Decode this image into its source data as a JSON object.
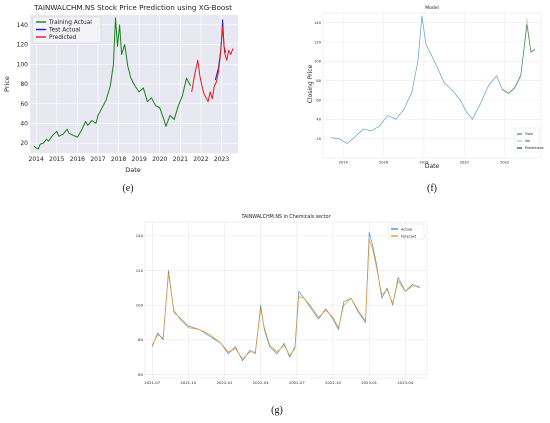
{
  "captions": {
    "e": "(e)",
    "f": "(f)",
    "g": "(g)"
  },
  "chart_data": [
    {
      "type": "line",
      "title": "TAINWALCHM.NS Stock Price Prediction using XG-Boost",
      "xlabel": "Date",
      "ylabel": "Price",
      "x_ticks": [
        "2014",
        "2015",
        "2016",
        "2017",
        "2018",
        "2019",
        "2020",
        "2021",
        "2022",
        "2023"
      ],
      "y_ticks": [
        20,
        40,
        60,
        80,
        100,
        120,
        140
      ],
      "xlim": [
        2013.7,
        2023.8
      ],
      "ylim": [
        10,
        150
      ],
      "legend": "top-left",
      "grid": true,
      "series": [
        {
          "name": "Training Actual",
          "color": "#1a7f1a",
          "x": [
            2013.9,
            2014.0,
            2014.1,
            2014.2,
            2014.35,
            2014.5,
            2014.6,
            2014.8,
            2015.0,
            2015.1,
            2015.3,
            2015.5,
            2015.6,
            2015.8,
            2016.0,
            2016.2,
            2016.4,
            2016.5,
            2016.7,
            2016.9,
            2017.0,
            2017.2,
            2017.4,
            2017.6,
            2017.75,
            2017.85,
            2017.95,
            2018.05,
            2018.15,
            2018.3,
            2018.45,
            2018.6,
            2018.8,
            2019.0,
            2019.2,
            2019.4,
            2019.6,
            2019.8,
            2020.0,
            2020.2,
            2020.3,
            2020.5,
            2020.7,
            2020.9,
            2021.1,
            2021.3,
            2021.5
          ],
          "y": [
            17,
            15,
            14,
            19,
            20,
            24,
            22,
            28,
            32,
            27,
            29,
            34,
            30,
            28,
            26,
            33,
            42,
            38,
            43,
            40,
            48,
            56,
            64,
            78,
            100,
            147,
            118,
            140,
            110,
            120,
            98,
            86,
            78,
            72,
            76,
            62,
            66,
            58,
            56,
            44,
            37,
            48,
            44,
            58,
            68,
            86,
            78
          ]
        },
        {
          "name": "Test Actual",
          "color": "#1a1ad6",
          "x": [
            2022.7,
            2022.85,
            2022.95,
            2023.0,
            2023.05,
            2023.12,
            2023.2
          ],
          "y": [
            84,
            96,
            112,
            124,
            145,
            118,
            112
          ]
        },
        {
          "name": "Predicted",
          "color": "#e6191e",
          "x": [
            2021.55,
            2021.65,
            2021.75,
            2021.85,
            2021.95,
            2022.05,
            2022.15,
            2022.25,
            2022.35,
            2022.45,
            2022.55,
            2022.65,
            2022.75,
            2022.85,
            2022.95,
            2023.0,
            2023.05,
            2023.15,
            2023.25,
            2023.35,
            2023.45,
            2023.55
          ],
          "y": [
            72,
            84,
            95,
            104,
            88,
            78,
            70,
            66,
            62,
            72,
            65,
            78,
            82,
            92,
            110,
            124,
            138,
            112,
            104,
            114,
            110,
            116
          ]
        }
      ]
    },
    {
      "type": "line",
      "title": "Model",
      "xlabel": "Date",
      "ylabel": "Closing Price",
      "x_ticks": [
        "2014",
        "2016",
        "2018",
        "2020",
        "2022"
      ],
      "y_ticks": [
        20,
        40,
        60,
        80,
        100,
        120,
        140
      ],
      "xlim": [
        2013.0,
        2023.8
      ],
      "ylim": [
        0,
        150
      ],
      "legend": "bottom-right",
      "grid": true,
      "series": [
        {
          "name": "Train",
          "color": "#4a90c8",
          "x": [
            2013.4,
            2013.8,
            2014.2,
            2014.6,
            2015.0,
            2015.4,
            2015.8,
            2016.2,
            2016.6,
            2017.0,
            2017.4,
            2017.7,
            2017.9,
            2018.1,
            2018.4,
            2018.7,
            2019.0,
            2019.4,
            2019.8,
            2020.1,
            2020.4,
            2020.8,
            2021.2,
            2021.6,
            2021.9
          ],
          "y": [
            21,
            20,
            15,
            22,
            30,
            28,
            33,
            44,
            40,
            50,
            68,
            100,
            147,
            118,
            105,
            92,
            78,
            70,
            60,
            48,
            40,
            56,
            75,
            85,
            70
          ]
        },
        {
          "name": "Val",
          "color": "#c8c8c8",
          "x": [
            2021.9,
            2022.2,
            2022.5,
            2022.8,
            2023.0,
            2023.1,
            2023.3,
            2023.5
          ],
          "y": [
            70,
            66,
            72,
            84,
            124,
            145,
            108,
            114
          ]
        },
        {
          "name": "Predictions",
          "color": "#2e7d32",
          "x": [
            2021.9,
            2022.2,
            2022.5,
            2022.8,
            2023.0,
            2023.1,
            2023.3,
            2023.5
          ],
          "y": [
            71,
            67,
            73,
            86,
            120,
            138,
            110,
            112
          ]
        }
      ]
    },
    {
      "type": "line",
      "title": "TAINWALCHM.NS in Chemicals sector",
      "xlabel": "",
      "ylabel": "",
      "x_ticks": [
        "2021-07",
        "2021-10",
        "2022-01",
        "2022-04",
        "2022-07",
        "2022-10",
        "2023-01",
        "2023-04"
      ],
      "y_ticks": [
        60,
        80,
        100,
        120,
        140
      ],
      "xlim": [
        -0.2,
        7.6
      ],
      "ylim": [
        58,
        148
      ],
      "legend": "top-right",
      "grid": true,
      "series": [
        {
          "name": "Actual",
          "color": "#4a90c8",
          "x": [
            0.0,
            0.15,
            0.3,
            0.45,
            0.6,
            0.8,
            1.0,
            1.3,
            1.6,
            1.9,
            2.1,
            2.3,
            2.5,
            2.7,
            2.85,
            3.0,
            3.1,
            3.25,
            3.45,
            3.65,
            3.8,
            3.95,
            4.05,
            4.2,
            4.4,
            4.6,
            4.8,
            5.0,
            5.15,
            5.3,
            5.5,
            5.7,
            5.9,
            6.0,
            6.1,
            6.2,
            6.35,
            6.5,
            6.65,
            6.8,
            7.0,
            7.2,
            7.4
          ],
          "y": [
            76,
            84,
            80,
            120,
            96,
            92,
            88,
            86,
            82,
            78,
            72,
            76,
            68,
            74,
            72,
            100,
            86,
            76,
            72,
            78,
            70,
            76,
            108,
            104,
            98,
            92,
            98,
            92,
            86,
            102,
            104,
            96,
            90,
            142,
            134,
            124,
            104,
            110,
            100,
            116,
            108,
            112,
            110
          ]
        },
        {
          "name": "Forecast",
          "color": "#f0942a",
          "x": [
            0.0,
            0.15,
            0.3,
            0.45,
            0.6,
            0.8,
            1.0,
            1.3,
            1.6,
            1.9,
            2.1,
            2.3,
            2.5,
            2.7,
            2.85,
            3.0,
            3.1,
            3.25,
            3.45,
            3.65,
            3.8,
            3.95,
            4.05,
            4.2,
            4.4,
            4.6,
            4.8,
            5.0,
            5.15,
            5.3,
            5.5,
            5.7,
            5.9,
            6.0,
            6.1,
            6.2,
            6.35,
            6.5,
            6.65,
            6.8,
            7.0,
            7.2,
            7.4
          ],
          "y": [
            77,
            83,
            81,
            118,
            97,
            91,
            87,
            86,
            83,
            78,
            73,
            75,
            69,
            73,
            73,
            98,
            87,
            77,
            73,
            77,
            71,
            75,
            105,
            104,
            99,
            93,
            97,
            93,
            87,
            100,
            104,
            97,
            91,
            138,
            132,
            122,
            106,
            109,
            101,
            114,
            108,
            111,
            111
          ]
        }
      ]
    }
  ]
}
